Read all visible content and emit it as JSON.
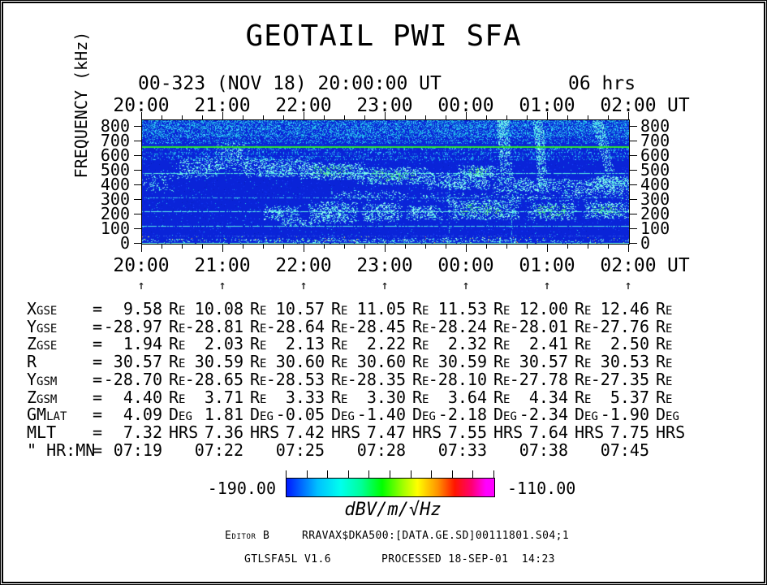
{
  "title": "GEOTAIL PWI SFA",
  "header": {
    "date_label": "00-323 (NOV 18) 20:00:00 UT",
    "duration_label": "06 hrs"
  },
  "time_axis": {
    "hour_labels": [
      "20:00",
      "21:00",
      "22:00",
      "23:00",
      "00:00",
      "01:00",
      "02:00"
    ],
    "unit_label": "UT",
    "minor_ticks_per_hour": 4
  },
  "freq_axis": {
    "label": "FREQUENCY (kHz)",
    "tick_labels": [
      "800",
      "700",
      "600",
      "500",
      "400",
      "300",
      "200",
      "100",
      "0"
    ]
  },
  "ephemeris": {
    "marker": "↑",
    "rows": [
      {
        "label": "Xgse",
        "unit": "Re",
        "values": [
          "9.58",
          "10.08",
          "10.57",
          "11.05",
          "11.53",
          "12.00",
          "12.46"
        ]
      },
      {
        "label": "Ygse",
        "unit": "Re",
        "values": [
          "-28.97",
          "-28.81",
          "-28.64",
          "-28.45",
          "-28.24",
          "-28.01",
          "-27.76"
        ]
      },
      {
        "label": "Zgse",
        "unit": "Re",
        "values": [
          "1.94",
          "2.03",
          "2.13",
          "2.22",
          "2.32",
          "2.41",
          "2.50"
        ]
      },
      {
        "label": "R",
        "unit": "Re",
        "values": [
          "30.57",
          "30.59",
          "30.60",
          "30.60",
          "30.59",
          "30.57",
          "30.53"
        ]
      },
      {
        "label": "Ygsm",
        "unit": "Re",
        "values": [
          "-28.70",
          "-28.65",
          "-28.53",
          "-28.35",
          "-28.10",
          "-27.78",
          "-27.35"
        ]
      },
      {
        "label": "Zgsm",
        "unit": "Re",
        "values": [
          "4.40",
          "3.71",
          "3.33",
          "3.30",
          "3.64",
          "4.34",
          "5.37"
        ]
      },
      {
        "label": "GMlat",
        "unit": "Deg",
        "values": [
          "4.09",
          "1.81",
          "-0.05",
          "-1.40",
          "-2.18",
          "-2.34",
          "-1.90"
        ]
      },
      {
        "label": "MLT",
        "unit": "HRS",
        "values": [
          "7.32",
          "7.36",
          "7.42",
          "7.47",
          "7.55",
          "7.64",
          "7.75"
        ]
      },
      {
        "label": "\" HR:MN",
        "unit": "",
        "values": [
          "07:19",
          "07:22",
          "07:25",
          "07:28",
          "07:33",
          "07:38",
          "07:45"
        ]
      }
    ]
  },
  "colorbar": {
    "min_label": "-190.00",
    "max_label": "-110.00",
    "unit_label": "dBV/m/√Hz",
    "gradient": [
      [
        "#0018ff",
        0
      ],
      [
        "#00c0ff",
        15
      ],
      [
        "#00ffee",
        26
      ],
      [
        "#00ff99",
        36
      ],
      [
        "#00ff00",
        46
      ],
      [
        "#a0ff00",
        56
      ],
      [
        "#ffff00",
        63
      ],
      [
        "#ff9000",
        73
      ],
      [
        "#ff1500",
        81
      ],
      [
        "#ff0070",
        89
      ],
      [
        "#ff00ff",
        96
      ]
    ]
  },
  "footer": {
    "editor_label": "Editor B",
    "file_path": "RRAVAX$DKA500:[DATA.GE.SD]00111801.S04;1",
    "program_version": "GTLSFA5L V1.6",
    "processed_label": "PROCESSED 18-SEP-01  14:23"
  },
  "chart_data": {
    "type": "heatmap",
    "subtype": "radio-spectrogram",
    "title": "GEOTAIL PWI SFA",
    "x_axis": {
      "label": "UT",
      "start": "20:00",
      "end": "02:00",
      "span_hours": 6,
      "date": "2000-323 NOV 18"
    },
    "y_axis": {
      "label": "FREQUENCY (kHz)",
      "min": 0,
      "max": 800,
      "ticks": [
        0,
        100,
        200,
        300,
        400,
        500,
        600,
        700,
        800
      ]
    },
    "z_axis": {
      "label": "dBV/m/√Hz",
      "min": -190,
      "max": -110
    },
    "legend_position": "bottom colorbar",
    "features": [
      "low-intensity blue background across full plot",
      "broadband speckled noise band 650-800 kHz across all times",
      "continuous narrowband green emission line near 630 kHz",
      "horizontal interference lines near 460, 300, 212, 115 and ~5 kHz",
      "drifting continuum band descending from ~500 kHz at 21:00 to ~350-430 kHz after 00:00, green core 22:00-23:30 and ~00:00-00:20",
      "patchy emission band 130-285 kHz from ~21:30 to 02:00, strongest (greenish) 23:45-02:00",
      "vertical burst streaks from 800 kHz down to ~350-470 kHz near 00:25, 00:50 and 01:35",
      "bright cyan band at the very bottom (0-30 kHz)"
    ],
    "render": {
      "seed": 1337,
      "bg": "#0a24d8",
      "speckles": [
        {
          "d": 0.05,
          "colors": [
            "#0f35f2",
            "#0620b8",
            "#1b49ff",
            "#0826cc",
            "#1130e8"
          ]
        },
        {
          "d": 0.009,
          "colors": [
            "#27c8e8",
            "#15a8e0",
            "#2fd4f2"
          ]
        }
      ],
      "noise_colors": [
        "#1fb8ec",
        "#2ecdf5",
        "#16a3dc",
        "#46ddff",
        "#0e7fd0",
        "#29c3ef"
      ],
      "cyan_colors": [
        "#7ef7ec",
        "#63f0e4",
        "#92fbf2",
        "#4fe9e2",
        "#a9fff6",
        "#55eee8"
      ],
      "green_colors": [
        "#3fe07e",
        "#57ea6b",
        "#2bd98f",
        "#7af065",
        "#45e05f"
      ],
      "top_band": {
        "fmin": 645,
        "fbright": 690,
        "d1": 0.42,
        "d2": 0.25
      },
      "hiss_rows": [
        {
          "f": 622,
          "cov": 0.3
        },
        {
          "f": 608,
          "cov": 0.35
        },
        {
          "f": 596,
          "cov": 0.3
        },
        {
          "f": 583,
          "cov": 0.35
        },
        {
          "f": 570,
          "cov": 0.3
        },
        {
          "f": 558,
          "cov": 0.28
        },
        {
          "f": 546,
          "cov": 0.25
        }
      ],
      "lines": [
        {
          "f": 460,
          "cov": 0.8,
          "color": "#58e8e2",
          "w": 1
        },
        {
          "f": 300,
          "cov": 0.45,
          "color": "#3fc6e8",
          "w": 1
        },
        {
          "f": 212,
          "cov": 0.8,
          "color": "#60efe8",
          "w": 1
        },
        {
          "f": 115,
          "cov": 0.75,
          "color": "#55e6e6",
          "w": 1
        },
        {
          "f": 52,
          "cov": 0.4,
          "color": "#2e58e8",
          "w": 1
        }
      ],
      "lines_over": [
        {
          "f": 630,
          "cov": 1.0,
          "color": "#2fe42f",
          "w": 2
        },
        {
          "f": 5,
          "cov": 0.95,
          "color": "#70f6ec",
          "w": 2
        }
      ],
      "blobs": [
        {
          "h": [
            0.42,
            0.95
          ],
          "f": [
            420,
            565
          ],
          "d": 0.3
        },
        {
          "h": [
            0.9,
            1.32
          ],
          "f": [
            470,
            655
          ],
          "d": 0.28
        },
        {
          "h": [
            1.25,
            2.05
          ],
          "f": [
            430,
            555
          ],
          "d": 0.42
        },
        {
          "h": [
            1.95,
            2.75
          ],
          "f": [
            415,
            525
          ],
          "d": 0.5,
          "g": 1
        },
        {
          "h": [
            2.65,
            3.55
          ],
          "f": [
            385,
            495
          ],
          "d": 0.5,
          "g": 1
        },
        {
          "h": [
            3.45,
            4.3
          ],
          "f": [
            350,
            460
          ],
          "d": 0.42
        },
        {
          "h": [
            3.9,
            4.4
          ],
          "f": [
            430,
            510
          ],
          "d": 0.5,
          "g": 1
        },
        {
          "h": [
            4.3,
            5.25
          ],
          "f": [
            330,
            430
          ],
          "d": 0.38
        },
        {
          "h": [
            5.2,
            6.0
          ],
          "f": [
            310,
            420
          ],
          "d": 0.4
        },
        {
          "h": [
            5.55,
            6.0
          ],
          "f": [
            360,
            445
          ],
          "d": 0.5
        },
        {
          "h": [
            1.5,
            1.95
          ],
          "f": [
            150,
            245
          ],
          "d": 0.35
        },
        {
          "h": [
            1.7,
            2.1
          ],
          "f": [
            115,
            175
          ],
          "d": 0.3
        },
        {
          "h": [
            2.05,
            2.65
          ],
          "f": [
            130,
            270
          ],
          "d": 0.45
        },
        {
          "h": [
            2.7,
            3.2
          ],
          "f": [
            140,
            265
          ],
          "d": 0.42
        },
        {
          "h": [
            3.25,
            3.7
          ],
          "f": [
            150,
            250
          ],
          "d": 0.4
        },
        {
          "h": [
            3.75,
            4.65
          ],
          "f": [
            155,
            285
          ],
          "d": 0.5,
          "g": 1
        },
        {
          "h": [
            4.75,
            5.35
          ],
          "f": [
            150,
            265
          ],
          "d": 0.48,
          "g": 1
        },
        {
          "h": [
            5.45,
            6.0
          ],
          "f": [
            160,
            268
          ],
          "d": 0.5,
          "g": 1
        },
        {
          "h": [
            3.4,
            6.0
          ],
          "f": [
            270,
            330
          ],
          "d": 0.12
        },
        {
          "h": [
            0.0,
            0.4
          ],
          "f": [
            330,
            470
          ],
          "d": 0.15
        },
        {
          "h": [
            2.3,
            3.3
          ],
          "f": [
            280,
            345
          ],
          "d": 0.18
        },
        {
          "h": [
            0.0,
            6.0
          ],
          "f": [
            8,
            30
          ],
          "d": 0.22
        },
        {
          "h": [
            1.3,
            4.7
          ],
          "f": [
            2,
            40
          ],
          "d": 0.1
        }
      ],
      "streaks": [
        {
          "h": 4.37,
          "w": 0.14,
          "fbot": 425,
          "d": 0.5,
          "slant": 0.4
        },
        {
          "h": 4.82,
          "w": 0.12,
          "fbot": 365,
          "d": 0.5,
          "slant": 0.6
        },
        {
          "h": 5.55,
          "w": 0.13,
          "fbot": 470,
          "d": 0.4,
          "slant": 1.2
        }
      ],
      "vlines": [
        {
          "h": 3.78,
          "f": [
            60,
            430
          ],
          "cov": 0.35,
          "color": "#49d8e0"
        },
        {
          "h": 4.55,
          "f": [
            0,
            300
          ],
          "cov": 0.3,
          "color": "#3cc8e0"
        },
        {
          "h": 2.08,
          "f": [
            60,
            300
          ],
          "cov": 0.25,
          "color": "#35b8e8"
        }
      ],
      "bottom_dots": {
        "n": 90,
        "hpx": 8,
        "colors": [
          "#ffe14a",
          "#ffa02e",
          "#b8ff42",
          "#64f0b0"
        ]
      }
    }
  }
}
